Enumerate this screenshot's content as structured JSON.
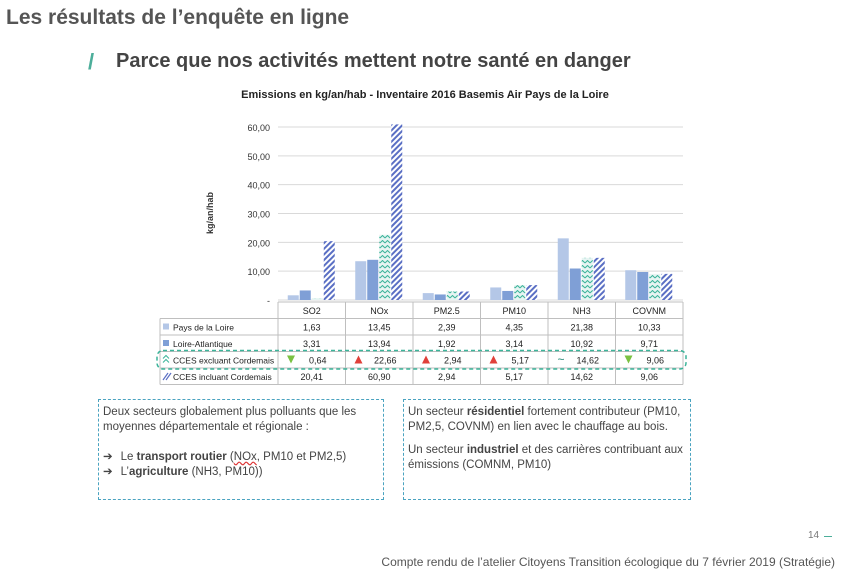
{
  "page": {
    "title": "Les résultats de l’enquête en ligne",
    "subtitle": "Parce que nos activités mettent notre santé en danger",
    "page_number": "14",
    "footer": "Compte rendu de l’atelier Citoyens Transition écologique du 7 février 2019 (Stratégie)"
  },
  "colors": {
    "series1": "#b4c7e7",
    "series2": "#7f9fd6",
    "series3": "#3bb49a",
    "series4": "#5a6fc4",
    "accent": "#4cae9a",
    "up": "#e0403a",
    "down": "#7ac142"
  },
  "chart_data": {
    "type": "bar",
    "title": "Emissions en kg/an/hab - Inventaire 2016 Basemis Air Pays de la Loire",
    "ylabel": "kg/an/hab",
    "ylim": [
      0,
      60
    ],
    "yticks": [
      "60,00",
      "50,00",
      "40,00",
      "30,00",
      "20,00",
      "10,00",
      "-"
    ],
    "ytick_values": [
      60,
      50,
      40,
      30,
      20,
      10,
      0
    ],
    "categories": [
      "SO2",
      "NOx",
      "PM2.5",
      "PM10",
      "NH3",
      "COVNM"
    ],
    "grid": true,
    "series": [
      {
        "name": "Pays de la Loire",
        "values": [
          1.63,
          13.45,
          2.39,
          4.35,
          21.38,
          10.33
        ],
        "labels": [
          "1,63",
          "13,45",
          "2,39",
          "4,35",
          "21,38",
          "10,33"
        ]
      },
      {
        "name": "Loire-Atlantique",
        "values": [
          3.31,
          13.94,
          1.92,
          3.14,
          10.92,
          9.71
        ],
        "labels": [
          "3,31",
          "13,94",
          "1,92",
          "3,14",
          "10,92",
          "9,71"
        ]
      },
      {
        "name": "CCES excluant Cordemais",
        "values": [
          0.64,
          22.66,
          2.94,
          5.17,
          14.62,
          9.06
        ],
        "labels": [
          "0,64",
          "22,66",
          "2,94",
          "5,17",
          "14,62",
          "9,06"
        ],
        "markers": [
          "down",
          "up",
          "up",
          "up",
          "tilde",
          "down"
        ]
      },
      {
        "name": "CCES incluant Cordemais",
        "values": [
          20.41,
          60.9,
          2.94,
          5.17,
          14.62,
          9.06
        ],
        "labels": [
          "20,41",
          "60,90",
          "2,94",
          "5,17",
          "14,62",
          "9,06"
        ]
      }
    ]
  },
  "box1": {
    "intro": "Deux secteurs globalement plus polluants que les moyennes départementale et régionale :",
    "item1_prefix": "Le ",
    "item1_bold": "transport routier",
    "item1_u": "NOx",
    "item1_rest": ", PM10 et PM2,5)",
    "item2_prefix": "L’",
    "item2_bold": "agriculture",
    "item2_rest": " (NH3, PM10))",
    "arrow": "➔"
  },
  "box2": {
    "p1_prefix": "Un secteur ",
    "p1_bold": "résidentiel",
    "p1_rest": " fortement contributeur (PM10, PM2,5, COVNM) en lien avec le chauffage au bois.",
    "p2_prefix": "Un secteur ",
    "p2_bold": "industriel",
    "p2_rest": " et des carrières contribuant aux émissions (COMNM, PM10)"
  }
}
